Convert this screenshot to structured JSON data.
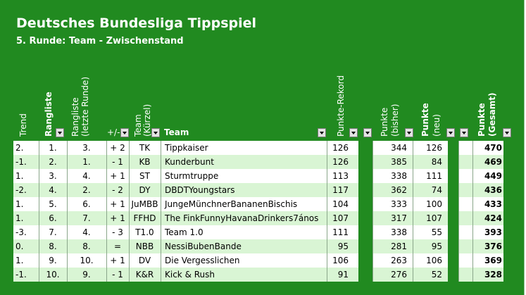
{
  "title": "Deutsches Bundesliga Tippspiel",
  "subtitle": "5. Runde: Team - Zwischenstand",
  "headers": {
    "trend": "Trend",
    "rangliste": "Rangliste",
    "rangliste_letzte_1": "Rangliste",
    "rangliste_letzte_2": "(letzte Runde)",
    "plusminus": "+/-",
    "team_kurz_1": "Team",
    "team_kurz_2": "(Kürzel)",
    "team": "Team",
    "rekord": "Punkte-Rekord",
    "bisher_1": "Punkte",
    "bisher_2": "(bisher)",
    "neu_1": "Punkte",
    "neu_2": "(neu)",
    "gesamt_1": "Punkte",
    "gesamt_2": "(Gesamt)"
  },
  "rows": [
    {
      "trend": "2.",
      "rang": "1.",
      "letzte": "3.",
      "diff": "+ 2",
      "kurz": "TK",
      "team": "Tippkaiser",
      "rekord": "126",
      "bisher": "344",
      "neu": "126",
      "gesamt": "470"
    },
    {
      "trend": "-1.",
      "rang": "2.",
      "letzte": "1.",
      "diff": "- 1",
      "kurz": "KB",
      "team": "Kunderbunt",
      "rekord": "126",
      "bisher": "385",
      "neu": "84",
      "gesamt": "469"
    },
    {
      "trend": "1.",
      "rang": "3.",
      "letzte": "4.",
      "diff": "+ 1",
      "kurz": "ST",
      "team": "Sturmtruppe",
      "rekord": "113",
      "bisher": "338",
      "neu": "111",
      "gesamt": "449"
    },
    {
      "trend": "-2.",
      "rang": "4.",
      "letzte": "2.",
      "diff": "- 2",
      "kurz": "DY",
      "team": "DBDTYoungstars",
      "rekord": "117",
      "bisher": "362",
      "neu": "74",
      "gesamt": "436"
    },
    {
      "trend": "1.",
      "rang": "5.",
      "letzte": "6.",
      "diff": "+ 1",
      "kurz": "JuMBB",
      "team": "JungeMünchnerBananenBischis",
      "rekord": "104",
      "bisher": "333",
      "neu": "100",
      "gesamt": "433"
    },
    {
      "trend": "1.",
      "rang": "6.",
      "letzte": "7.",
      "diff": "+ 1",
      "kurz": "FFHD",
      "team": "The FinkFunnyHavanaDrinkers7ános",
      "rekord": "107",
      "bisher": "317",
      "neu": "107",
      "gesamt": "424"
    },
    {
      "trend": "-3.",
      "rang": "7.",
      "letzte": "4.",
      "diff": "- 3",
      "kurz": "T1.0",
      "team": "Team 1.0",
      "rekord": "111",
      "bisher": "338",
      "neu": "55",
      "gesamt": "393"
    },
    {
      "trend": "0.",
      "rang": "8.",
      "letzte": "8.",
      "diff": "=",
      "kurz": "NBB",
      "team": "NessiBubenBande",
      "rekord": "95",
      "bisher": "281",
      "neu": "95",
      "gesamt": "376"
    },
    {
      "trend": "1.",
      "rang": "9.",
      "letzte": "10.",
      "diff": "+ 1",
      "kurz": "DV",
      "team": "Die Vergesslichen",
      "rekord": "106",
      "bisher": "263",
      "neu": "106",
      "gesamt": "369"
    },
    {
      "trend": "-1.",
      "rang": "10.",
      "letzte": "9.",
      "diff": "- 1",
      "kurz": "K&R",
      "team": "Kick & Rush",
      "rekord": "91",
      "bisher": "276",
      "neu": "52",
      "gesamt": "328"
    }
  ]
}
